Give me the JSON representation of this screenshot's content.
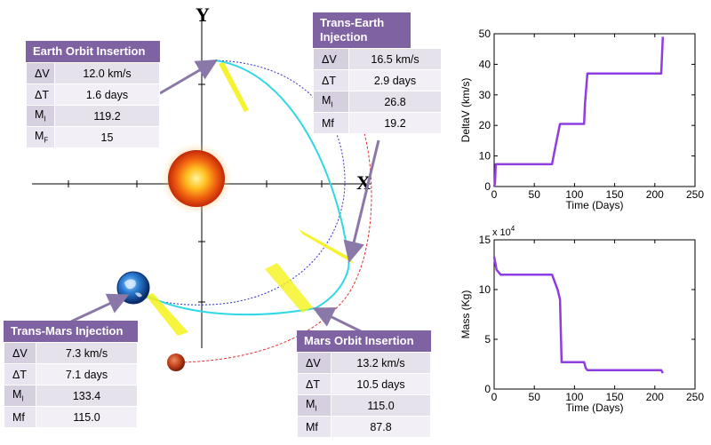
{
  "axes": {
    "x_label": "X",
    "y_label": "Y"
  },
  "boxes": {
    "earth_orbit_insertion": {
      "title": "Earth Orbit Insertion",
      "rows": [
        {
          "label": "ΔV",
          "value": "12.0 km/s"
        },
        {
          "label": "ΔT",
          "value": "1.6 days"
        },
        {
          "label": "M",
          "sub": "I",
          "value": "119.2"
        },
        {
          "label": "M",
          "sub": "F",
          "value": "15"
        }
      ]
    },
    "trans_earth_injection": {
      "title": "Trans-Earth Injection",
      "rows": [
        {
          "label": "ΔV",
          "value": "16.5 km/s"
        },
        {
          "label": "ΔT",
          "value": "2.9 days"
        },
        {
          "label": "M",
          "sub": "I",
          "value": "26.8"
        },
        {
          "label": "Mf",
          "value": "19.2"
        }
      ]
    },
    "trans_mars_injection": {
      "title": "Trans-Mars Injection",
      "rows": [
        {
          "label": "ΔV",
          "value": "7.3 km/s"
        },
        {
          "label": "ΔT",
          "value": "7.1 days"
        },
        {
          "label": "M",
          "sub": "I",
          "value": "133.4"
        },
        {
          "label": "Mf",
          "value": "115.0"
        }
      ]
    },
    "mars_orbit_insertion": {
      "title": "Mars Orbit Insertion",
      "rows": [
        {
          "label": "ΔV",
          "value": "13.2 km/s"
        },
        {
          "label": "ΔT",
          "value": "10.5 days"
        },
        {
          "label": "M",
          "sub": "I",
          "value": "115.0"
        },
        {
          "label": "Mf",
          "value": "87.8"
        }
      ]
    }
  },
  "colors": {
    "header": "#7e62a2",
    "line_purple": "#8f3de0",
    "trajectory_cyan": "#2ed8e6",
    "earth_orbit": "#2f2fd0",
    "mars_orbit": "#e03030",
    "burn_yellow": "#f4f21a",
    "callout": "#8a78a8"
  },
  "chart_data": [
    {
      "type": "line",
      "title": "",
      "xlabel": "Time (Days)",
      "ylabel": "DeltaV (km/s)",
      "xlim": [
        0,
        250
      ],
      "ylim": [
        0,
        50
      ],
      "xticks": [
        0,
        50,
        100,
        150,
        200,
        250
      ],
      "yticks": [
        0,
        10,
        20,
        30,
        40,
        50
      ],
      "series": [
        {
          "x": [
            0,
            1,
            2,
            8,
            72,
            77,
            82,
            112,
            113,
            116,
            208,
            209,
            210
          ],
          "y": [
            0,
            1,
            7.3,
            7.3,
            7.3,
            14,
            20.5,
            20.5,
            27,
            37,
            37,
            43,
            49
          ]
        }
      ]
    },
    {
      "type": "line",
      "title": "",
      "xlabel": "Time (Days)",
      "ylabel": "Mass (Kg)",
      "multiplier": "x 10",
      "multiplier_exp": "4",
      "xlim": [
        0,
        250
      ],
      "ylim": [
        0,
        15
      ],
      "xticks": [
        0,
        50,
        100,
        150,
        200,
        250
      ],
      "yticks": [
        0,
        5,
        10,
        15
      ],
      "series": [
        {
          "x": [
            0,
            3,
            8,
            72,
            79,
            82,
            84,
            112,
            114,
            116,
            208,
            210
          ],
          "y": [
            13.3,
            12,
            11.5,
            11.5,
            10,
            9,
            2.7,
            2.7,
            2.1,
            1.9,
            1.9,
            1.6
          ]
        }
      ]
    }
  ]
}
